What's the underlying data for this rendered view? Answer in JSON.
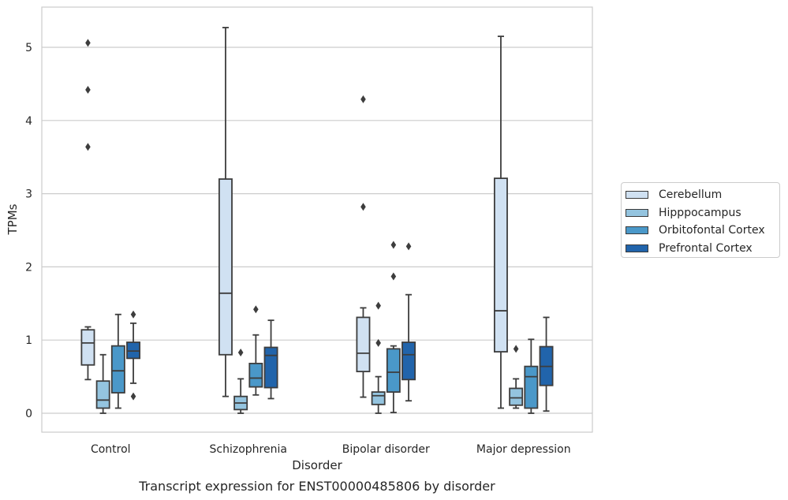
{
  "chart_data": {
    "type": "box",
    "title": "Transcript expression for ENST00000485806 by disorder",
    "xlabel": "Disorder",
    "ylabel": "TPMs",
    "ylim": [
      -0.25,
      5.5
    ],
    "yticks": [
      0,
      1,
      2,
      3,
      4,
      5
    ],
    "grid": true,
    "legend_position": "center-right",
    "categories": [
      "Control",
      "Schizophrenia",
      "Bipolar disorder",
      "Major depression"
    ],
    "series": [
      {
        "name": "Cerebellum",
        "color": "#d0e1f2",
        "boxes": [
          {
            "min": 0.46,
            "q1": 0.66,
            "median": 0.96,
            "q3": 1.14,
            "max": 1.18,
            "outliers": [
              3.64,
              4.42,
              5.06
            ]
          },
          {
            "min": 0.23,
            "q1": 0.8,
            "median": 1.64,
            "q3": 3.2,
            "max": 5.27,
            "outliers": []
          },
          {
            "min": 0.22,
            "q1": 0.57,
            "median": 0.82,
            "q3": 1.31,
            "max": 1.44,
            "outliers": [
              2.82,
              4.29
            ]
          },
          {
            "min": 0.07,
            "q1": 0.84,
            "median": 1.4,
            "q3": 3.21,
            "max": 5.15,
            "outliers": []
          }
        ]
      },
      {
        "name": "Hipppocampus",
        "color": "#94c4df",
        "boxes": [
          {
            "min": 0.0,
            "q1": 0.07,
            "median": 0.18,
            "q3": 0.44,
            "max": 0.8,
            "outliers": []
          },
          {
            "min": 0.0,
            "q1": 0.05,
            "median": 0.14,
            "q3": 0.23,
            "max": 0.47,
            "outliers": [
              0.83
            ]
          },
          {
            "min": 0.0,
            "q1": 0.12,
            "median": 0.24,
            "q3": 0.29,
            "max": 0.5,
            "outliers": [
              0.96,
              1.47
            ]
          },
          {
            "min": 0.07,
            "q1": 0.11,
            "median": 0.21,
            "q3": 0.34,
            "max": 0.47,
            "outliers": [
              0.88
            ]
          }
        ]
      },
      {
        "name": "Orbitofontal Cortex",
        "color": "#4a98c9",
        "boxes": [
          {
            "min": 0.07,
            "q1": 0.28,
            "median": 0.58,
            "q3": 0.92,
            "max": 1.35,
            "outliers": []
          },
          {
            "min": 0.25,
            "q1": 0.36,
            "median": 0.48,
            "q3": 0.68,
            "max": 1.07,
            "outliers": [
              1.42
            ]
          },
          {
            "min": 0.01,
            "q1": 0.29,
            "median": 0.56,
            "q3": 0.88,
            "max": 0.92,
            "outliers": [
              1.87,
              2.3
            ]
          },
          {
            "min": 0.0,
            "q1": 0.07,
            "median": 0.5,
            "q3": 0.64,
            "max": 1.01,
            "outliers": []
          }
        ]
      },
      {
        "name": "Prefrontal Cortex",
        "color": "#2164ab",
        "boxes": [
          {
            "min": 0.41,
            "q1": 0.75,
            "median": 0.85,
            "q3": 0.97,
            "max": 1.23,
            "outliers": [
              0.23,
              1.35
            ]
          },
          {
            "min": 0.2,
            "q1": 0.35,
            "median": 0.79,
            "q3": 0.9,
            "max": 1.27,
            "outliers": []
          },
          {
            "min": 0.17,
            "q1": 0.46,
            "median": 0.8,
            "q3": 0.97,
            "max": 1.62,
            "outliers": [
              2.28
            ]
          },
          {
            "min": 0.03,
            "q1": 0.38,
            "median": 0.64,
            "q3": 0.91,
            "max": 1.31,
            "outliers": []
          }
        ]
      }
    ]
  }
}
